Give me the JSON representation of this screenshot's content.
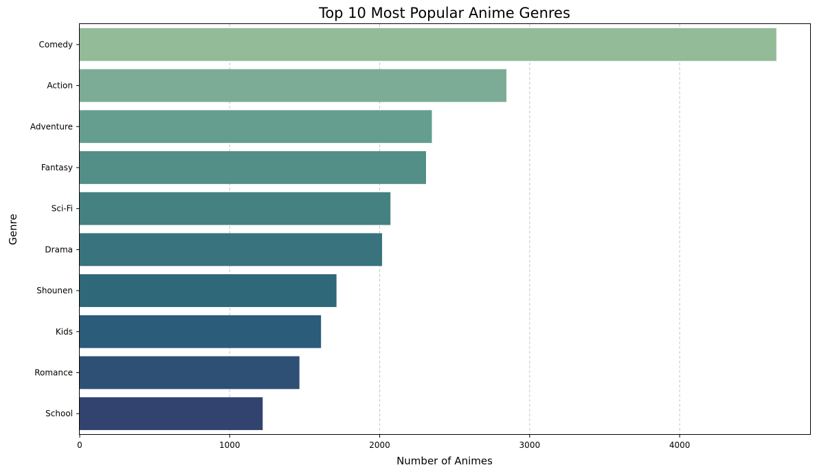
{
  "chart_data": {
    "type": "bar",
    "orientation": "horizontal",
    "title": "Top 10 Most Popular Anime Genres",
    "xlabel": "Number of Animes",
    "ylabel": "Genre",
    "categories": [
      "Comedy",
      "Action",
      "Adventure",
      "Fantasy",
      "Sci-Fi",
      "Drama",
      "Shounen",
      "Kids",
      "Romance",
      "School"
    ],
    "values": [
      4645,
      2845,
      2348,
      2309,
      2072,
      2016,
      1712,
      1609,
      1465,
      1220
    ],
    "xlim": [
      0,
      4870
    ],
    "xticks": [
      0,
      1000,
      2000,
      3000,
      4000
    ],
    "grid": "x-dashed",
    "colors": [
      "#93bb98",
      "#7cac95",
      "#659e8e",
      "#538e87",
      "#458180",
      "#39737d",
      "#2e6879",
      "#2b5c79",
      "#2f5075",
      "#334370"
    ]
  }
}
